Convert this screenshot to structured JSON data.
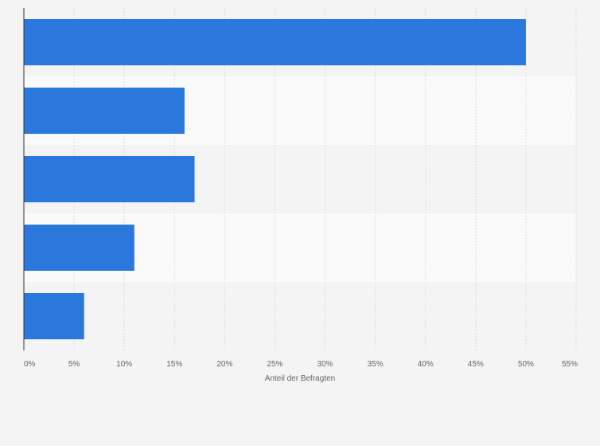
{
  "chart_data": {
    "type": "bar",
    "orientation": "horizontal",
    "categories": [
      "",
      "",
      "",
      "",
      ""
    ],
    "values": [
      50,
      16,
      17,
      11,
      6
    ],
    "title": "",
    "xlabel": "Anteil der Befragten",
    "ylabel": "",
    "xlim": [
      0,
      55
    ],
    "x_ticks": [
      0,
      5,
      10,
      15,
      20,
      25,
      30,
      35,
      40,
      45,
      50,
      55
    ],
    "x_tick_labels": [
      "0%",
      "5%",
      "10%",
      "15%",
      "20%",
      "25%",
      "30%",
      "35%",
      "40%",
      "45%",
      "50%",
      "55%"
    ],
    "grid": "vertical",
    "bar_color": "#2a77dd",
    "band_colors": [
      "#f4f4f4",
      "#fafafa"
    ],
    "background_color": "#f4f4f4",
    "grid_color": "#dddddd",
    "axis_color": "#333333"
  }
}
